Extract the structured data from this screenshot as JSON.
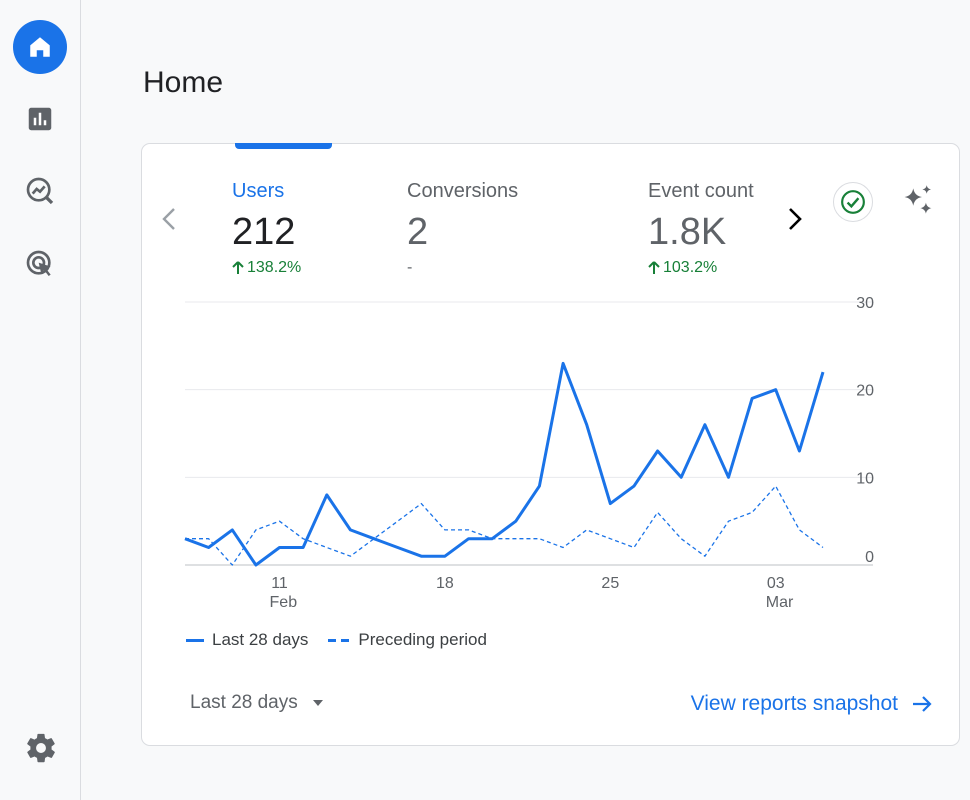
{
  "nav": {
    "items": [
      {
        "icon": "home-icon",
        "active": true
      },
      {
        "icon": "reports-icon",
        "active": false
      },
      {
        "icon": "explore-icon",
        "active": false
      },
      {
        "icon": "advertising-icon",
        "active": false
      }
    ],
    "settings_icon": "gear-icon"
  },
  "page": {
    "title": "Home"
  },
  "metrics": [
    {
      "label": "Users",
      "value": "212",
      "change": "138.2%",
      "trend": "up",
      "active": true
    },
    {
      "label": "Conversions",
      "value": "2",
      "change": "-",
      "trend": "none",
      "active": false
    },
    {
      "label": "Event count",
      "value": "1.8K",
      "change": "103.2%",
      "trend": "up",
      "active": false
    }
  ],
  "chart_data": {
    "type": "line",
    "ylim": [
      0,
      30
    ],
    "yticks": [
      0,
      10,
      20,
      30
    ],
    "x_ticks": [
      {
        "index": 4,
        "label": "11",
        "sub": "Feb"
      },
      {
        "index": 11,
        "label": "18",
        "sub": ""
      },
      {
        "index": 18,
        "label": "25",
        "sub": ""
      },
      {
        "index": 25,
        "label": "03",
        "sub": "Mar"
      }
    ],
    "series": [
      {
        "name": "Last 28 days",
        "style": "solid",
        "values": [
          3,
          2,
          4,
          0,
          2,
          2,
          8,
          4,
          3,
          2,
          1,
          1,
          3,
          3,
          5,
          9,
          23,
          16,
          7,
          9,
          13,
          10,
          16,
          10,
          19,
          20,
          13,
          22
        ]
      },
      {
        "name": "Preceding period",
        "style": "dashed",
        "values": [
          3,
          3,
          0,
          4,
          5,
          3,
          2,
          1,
          3,
          5,
          7,
          4,
          4,
          3,
          3,
          3,
          2,
          4,
          3,
          2,
          6,
          3,
          1,
          5,
          6,
          9,
          4,
          2
        ]
      }
    ]
  },
  "legend": {
    "current": "Last 28 days",
    "previous": "Preceding period"
  },
  "footer": {
    "range": "Last 28 days",
    "link": "View reports snapshot"
  },
  "colors": {
    "accent": "#1a73e8",
    "positive": "#188038"
  }
}
